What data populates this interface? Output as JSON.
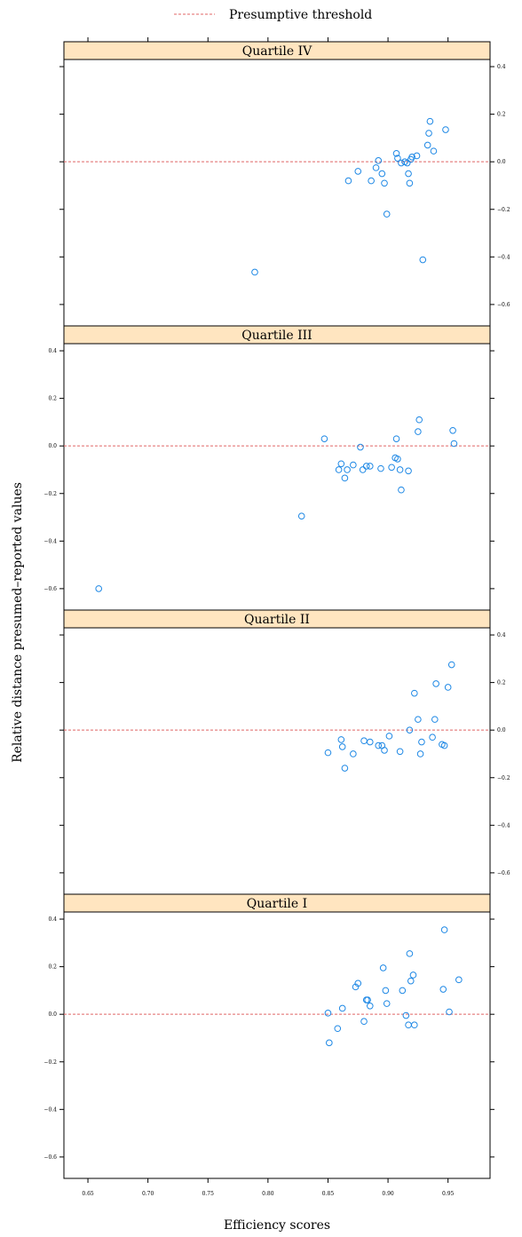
{
  "chart_data": {
    "type": "scatter",
    "legend": {
      "label": "Presumptive threshold",
      "position": "top",
      "color": "#e06666"
    },
    "xlabel": "Efficiency scores",
    "ylabel": "Relative distance presumed–reported values",
    "xlim": [
      0.63,
      0.985
    ],
    "ylim": [
      -0.69,
      0.43
    ],
    "x_ticks": [
      0.65,
      0.7,
      0.75,
      0.8,
      0.85,
      0.9,
      0.95
    ],
    "x_tick_labels": [
      "0.65",
      "0.70",
      "0.75",
      "0.80",
      "0.85",
      "0.90",
      "0.95"
    ],
    "y_ticks": [
      0.4,
      0.2,
      0.0,
      -0.2,
      -0.4,
      -0.6
    ],
    "y_tick_labels": [
      "0.4",
      "0.2",
      "0.0",
      "−0.2",
      "−0.4",
      "−0.6"
    ],
    "threshold_y": 0.0,
    "point_color": "#1e88e5",
    "strip_color": "#ffe5c0",
    "panels": [
      {
        "title": "Quartile IV",
        "y_axis_side": "right",
        "x": [
          0.789,
          0.867,
          0.875,
          0.886,
          0.89,
          0.892,
          0.895,
          0.897,
          0.899,
          0.907,
          0.908,
          0.911,
          0.914,
          0.916,
          0.917,
          0.918,
          0.919,
          0.92,
          0.924,
          0.929,
          0.933,
          0.934,
          0.935,
          0.938,
          0.948
        ],
        "y": [
          -0.464,
          -0.08,
          -0.04,
          -0.08,
          -0.025,
          0.005,
          -0.05,
          -0.09,
          -0.22,
          0.035,
          0.015,
          -0.005,
          0.0,
          -0.005,
          -0.05,
          -0.09,
          0.01,
          0.02,
          0.025,
          -0.412,
          0.07,
          0.12,
          0.17,
          0.045,
          0.135
        ]
      },
      {
        "title": "Quartile III",
        "y_axis_side": "left",
        "x": [
          0.659,
          0.828,
          0.847,
          0.859,
          0.861,
          0.864,
          0.866,
          0.871,
          0.877,
          0.879,
          0.882,
          0.885,
          0.894,
          0.903,
          0.906,
          0.907,
          0.908,
          0.91,
          0.911,
          0.917,
          0.925,
          0.926,
          0.954,
          0.955
        ],
        "y": [
          -0.6,
          -0.295,
          0.03,
          -0.1,
          -0.075,
          -0.135,
          -0.1,
          -0.08,
          -0.005,
          -0.1,
          -0.085,
          -0.085,
          -0.095,
          -0.09,
          -0.05,
          0.03,
          -0.055,
          -0.1,
          -0.185,
          -0.105,
          0.06,
          0.11,
          0.065,
          0.01
        ]
      },
      {
        "title": "Quartile II",
        "y_axis_side": "right",
        "x": [
          0.85,
          0.861,
          0.862,
          0.864,
          0.871,
          0.88,
          0.885,
          0.892,
          0.895,
          0.897,
          0.901,
          0.91,
          0.918,
          0.922,
          0.925,
          0.927,
          0.928,
          0.937,
          0.939,
          0.94,
          0.945,
          0.947,
          0.95,
          0.953
        ],
        "y": [
          -0.095,
          -0.04,
          -0.07,
          -0.16,
          -0.1,
          -0.045,
          -0.05,
          -0.065,
          -0.065,
          -0.085,
          -0.025,
          -0.09,
          0.0,
          0.155,
          0.045,
          -0.1,
          -0.05,
          -0.03,
          0.045,
          0.195,
          -0.06,
          -0.065,
          0.18,
          0.275
        ]
      },
      {
        "title": "Quartile I",
        "y_axis_side": "left",
        "x": [
          0.85,
          0.851,
          0.858,
          0.862,
          0.873,
          0.875,
          0.88,
          0.882,
          0.883,
          0.885,
          0.896,
          0.898,
          0.899,
          0.912,
          0.915,
          0.917,
          0.918,
          0.919,
          0.921,
          0.922,
          0.946,
          0.947,
          0.951,
          0.959
        ],
        "y": [
          0.005,
          -0.12,
          -0.06,
          0.025,
          0.115,
          0.13,
          -0.03,
          0.06,
          0.06,
          0.035,
          0.195,
          0.1,
          0.045,
          0.1,
          -0.005,
          -0.045,
          0.255,
          0.14,
          0.165,
          -0.045,
          0.105,
          0.355,
          0.01,
          0.145
        ]
      }
    ]
  }
}
